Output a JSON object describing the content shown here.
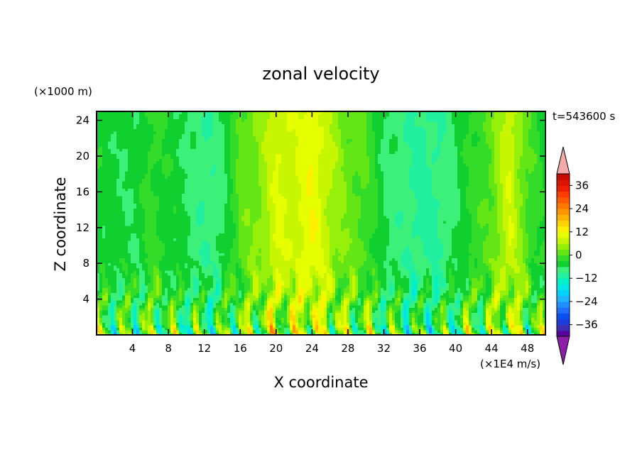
{
  "chart_data": {
    "type": "heatmap",
    "title": "zonal velocity",
    "xlabel": "X coordinate",
    "ylabel": "Z coordinate",
    "y_unit": "(×1000 m)",
    "x_unit": "(×1E4 m/s)",
    "time_label": "t=543600 s",
    "x_ticks": [
      "4",
      "8",
      "12",
      "16",
      "20",
      "24",
      "28",
      "32",
      "36",
      "40",
      "44",
      "48"
    ],
    "x_tick_values": [
      4,
      8,
      12,
      16,
      20,
      24,
      28,
      32,
      36,
      40,
      44,
      48
    ],
    "xlim": [
      0,
      50
    ],
    "y_ticks": [
      "4",
      "8",
      "12",
      "16",
      "20",
      "24"
    ],
    "y_tick_values": [
      4,
      8,
      12,
      16,
      20,
      24
    ],
    "ylim": [
      0,
      25
    ],
    "colorbar": {
      "labels": [
        "36",
        "24",
        "12",
        "0",
        "-12",
        "-24",
        "-36"
      ],
      "label_values": [
        36,
        24,
        12,
        0,
        -12,
        -24,
        -36
      ],
      "levels": [
        -42,
        -39,
        -36,
        -33,
        -30,
        -27,
        -24,
        -21,
        -18,
        -15,
        -12,
        -9,
        -6,
        -3,
        0,
        3,
        6,
        9,
        12,
        15,
        18,
        21,
        24,
        27,
        30,
        33,
        36,
        39,
        42
      ],
      "colors": [
        "#5a00a0",
        "#3c2fb4",
        "#1e3cdc",
        "#0a50f0",
        "#1e6eff",
        "#1e90ff",
        "#1eb4ff",
        "#00d2ff",
        "#00e6e6",
        "#00f0c8",
        "#20f0a0",
        "#3cf07a",
        "#10d030",
        "#32dc28",
        "#64e614",
        "#96f00a",
        "#c8f500",
        "#e6ff00",
        "#fff000",
        "#ffd200",
        "#ffb400",
        "#ff9600",
        "#ff7800",
        "#ff5a00",
        "#ff3c00",
        "#f01e00",
        "#dc1400",
        "#c80a00"
      ],
      "under_color": "#8c1eaa",
      "over_color": "#f5aaaa"
    },
    "zonal_profile": {
      "x": [
        0,
        2,
        4,
        6,
        8,
        10,
        12,
        14,
        16,
        18,
        20,
        22,
        24,
        26,
        28,
        30,
        32,
        34,
        36,
        38,
        40,
        42,
        44,
        46,
        48,
        50
      ],
      "u_upper": [
        -4,
        -5,
        -6,
        -2,
        -4,
        -6,
        -9,
        -7,
        1,
        3,
        9,
        8,
        12,
        6,
        2,
        0,
        -6,
        -8,
        -10,
        -9,
        -6,
        -2,
        1,
        9,
        0,
        -4
      ]
    }
  }
}
